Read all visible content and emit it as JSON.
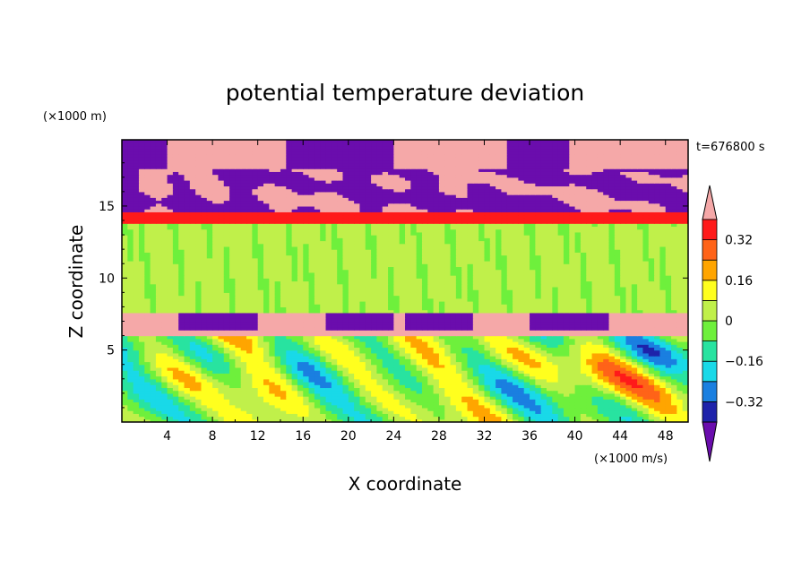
{
  "chart_data": {
    "type": "heatmap",
    "title": "potential temperature deviation",
    "xlabel": "X coordinate",
    "ylabel": "Z coordinate",
    "x_unit": "(×1000 m/s)",
    "y_unit": "(×1000 m)",
    "time_label": "t=676800 s",
    "xlim": [
      0,
      50
    ],
    "ylim": [
      0,
      19.6
    ],
    "xticks": [
      4,
      8,
      12,
      16,
      20,
      24,
      28,
      32,
      36,
      40,
      44,
      48
    ],
    "yticks": [
      5,
      10,
      15
    ],
    "colorbar": {
      "levels": [
        -0.4,
        -0.32,
        -0.24,
        -0.16,
        -0.08,
        0,
        0.08,
        0.16,
        0.24,
        0.32,
        0.4
      ],
      "labeled": [
        0.32,
        0.16,
        0,
        -0.16,
        -0.32
      ],
      "tick_labels": [
        "0.32",
        "0.16",
        "0",
        "−0.16",
        "−0.32"
      ],
      "colors": [
        "#6a0dad",
        "#1e22aa",
        "#1a7fe0",
        "#19d9e8",
        "#28e3a0",
        "#6ef03c",
        "#c0f04a",
        "#ffff1e",
        "#ffa500",
        "#ff6318",
        "#ff1a1a",
        "#f5a8a8"
      ]
    },
    "layers": [
      {
        "z": [
          17.5,
          19.6
        ],
        "description_value": 0.4,
        "value": "above max"
      },
      {
        "z": [
          14.5,
          17.5
        ],
        "value": "mixed below -0.4 / above 0.4"
      },
      {
        "z": [
          13.8,
          14.5
        ],
        "value": 0.36
      },
      {
        "z": [
          7.5,
          13.8
        ],
        "value": 0.04
      },
      {
        "z": [
          6.0,
          7.5
        ],
        "value": "above max with below min bumps"
      },
      {
        "z": [
          0,
          6.0
        ],
        "value": "turbulent mixed"
      }
    ]
  }
}
